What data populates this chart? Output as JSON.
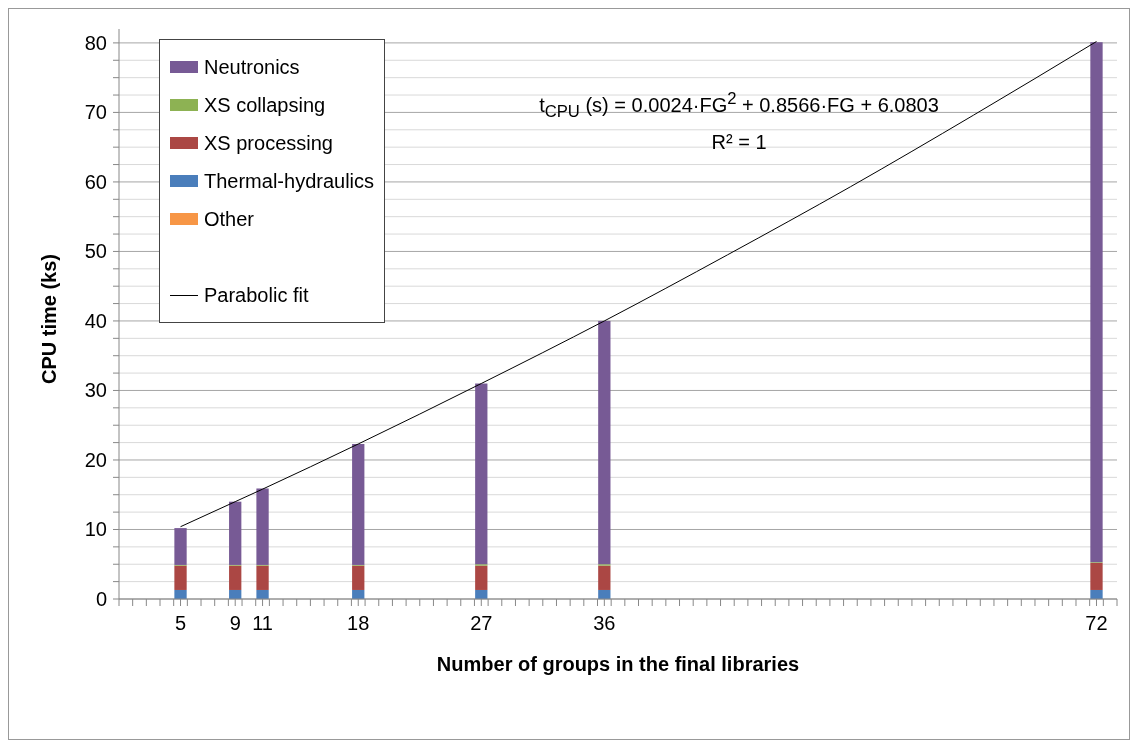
{
  "chart_data": {
    "type": "bar",
    "stacked": true,
    "xlabel": "Number of groups in the final libraries",
    "ylabel": "CPU time (ks)",
    "x": [
      5,
      9,
      11,
      18,
      27,
      36,
      72
    ],
    "xlim": [
      0.5,
      73.5
    ],
    "xticks": [
      5,
      9,
      11,
      18,
      27,
      36,
      72,
      {
        "value": 0.5,
        "label": null
      },
      {
        "value": 1.5,
        "label": null
      },
      {
        "value": 2.5,
        "label": null
      },
      {
        "value": 3.5,
        "label": null
      },
      {
        "value": 4.5,
        "label": null
      },
      {
        "value": 5.5,
        "label": null
      },
      {
        "value": 6.5,
        "label": null
      },
      {
        "value": 7.5,
        "label": null
      },
      {
        "value": 8.5,
        "label": null
      },
      {
        "value": 9.5,
        "label": null
      },
      {
        "value": 10.5,
        "label": null
      },
      {
        "value": 11.5,
        "label": null
      },
      {
        "value": 12.5,
        "label": null
      },
      {
        "value": 13.5,
        "label": null
      },
      {
        "value": 14.5,
        "label": null
      },
      {
        "value": 15.5,
        "label": null
      },
      {
        "value": 16.5,
        "label": null
      },
      {
        "value": 17.5,
        "label": null
      },
      {
        "value": 18.5,
        "label": null
      },
      {
        "value": 19.5,
        "label": null
      },
      {
        "value": 20.5,
        "label": null
      },
      {
        "value": 21.5,
        "label": null
      },
      {
        "value": 22.5,
        "label": null
      },
      {
        "value": 23.5,
        "label": null
      },
      {
        "value": 24.5,
        "label": null
      },
      {
        "value": 25.5,
        "label": null
      },
      {
        "value": 26.5,
        "label": null
      },
      {
        "value": 27.5,
        "label": null
      },
      {
        "value": 28.5,
        "label": null
      },
      {
        "value": 29.5,
        "label": null
      },
      {
        "value": 30.5,
        "label": null
      },
      {
        "value": 31.5,
        "label": null
      },
      {
        "value": 32.5,
        "label": null
      },
      {
        "value": 33.5,
        "label": null
      },
      {
        "value": 34.5,
        "label": null
      },
      {
        "value": 35.5,
        "label": null
      },
      {
        "value": 36.5,
        "label": null
      },
      {
        "value": 37.5,
        "label": null
      },
      {
        "value": 38.5,
        "label": null
      },
      {
        "value": 39.5,
        "label": null
      },
      {
        "value": 40.5,
        "label": null
      },
      {
        "value": 41.5,
        "label": null
      },
      {
        "value": 42.5,
        "label": null
      },
      {
        "value": 43.5,
        "label": null
      },
      {
        "value": 44.5,
        "label": null
      },
      {
        "value": 45.5,
        "label": null
      },
      {
        "value": 46.5,
        "label": null
      },
      {
        "value": 47.5,
        "label": null
      },
      {
        "value": 48.5,
        "label": null
      },
      {
        "value": 49.5,
        "label": null
      },
      {
        "value": 50.5,
        "label": null
      },
      {
        "value": 51.5,
        "label": null
      },
      {
        "value": 52.5,
        "label": null
      },
      {
        "value": 53.5,
        "label": null
      },
      {
        "value": 54.5,
        "label": null
      },
      {
        "value": 55.5,
        "label": null
      },
      {
        "value": 56.5,
        "label": null
      },
      {
        "value": 57.5,
        "label": null
      },
      {
        "value": 58.5,
        "label": null
      },
      {
        "value": 59.5,
        "label": null
      },
      {
        "value": 60.5,
        "label": null
      },
      {
        "value": 61.5,
        "label": null
      },
      {
        "value": 62.5,
        "label": null
      },
      {
        "value": 63.5,
        "label": null
      },
      {
        "value": 64.5,
        "label": null
      },
      {
        "value": 65.5,
        "label": null
      },
      {
        "value": 66.5,
        "label": null
      },
      {
        "value": 67.5,
        "label": null
      },
      {
        "value": 68.5,
        "label": null
      },
      {
        "value": 69.5,
        "label": null
      },
      {
        "value": 70.5,
        "label": null
      },
      {
        "value": 71.5,
        "label": null
      },
      {
        "value": 72.5,
        "label": null
      },
      {
        "value": 73.5,
        "label": null
      }
    ],
    "ylim": [
      0,
      82
    ],
    "yticks": [
      0,
      10,
      20,
      30,
      40,
      50,
      60,
      70,
      80,
      {
        "value": 2.5,
        "label": null
      },
      {
        "value": 5,
        "label": null
      },
      {
        "value": 7.5,
        "label": null
      },
      {
        "value": 12.5,
        "label": null
      },
      {
        "value": 15,
        "label": null
      },
      {
        "value": 17.5,
        "label": null
      },
      {
        "value": 22.5,
        "label": null
      },
      {
        "value": 25,
        "label": null
      },
      {
        "value": 27.5,
        "label": null
      },
      {
        "value": 32.5,
        "label": null
      },
      {
        "value": 35,
        "label": null
      },
      {
        "value": 37.5,
        "label": null
      },
      {
        "value": 42.5,
        "label": null
      },
      {
        "value": 45,
        "label": null
      },
      {
        "value": 47.5,
        "label": null
      },
      {
        "value": 52.5,
        "label": null
      },
      {
        "value": 55,
        "label": null
      },
      {
        "value": 57.5,
        "label": null
      },
      {
        "value": 62.5,
        "label": null
      },
      {
        "value": 65,
        "label": null
      },
      {
        "value": 67.5,
        "label": null
      },
      {
        "value": 72.5,
        "label": null
      },
      {
        "value": 75,
        "label": null
      },
      {
        "value": 77.5,
        "label": null
      }
    ],
    "grid": "y",
    "legend": "top left",
    "marker": "none",
    "series": [
      {
        "name": "Other",
        "color": "#f79646",
        "values": [
          0,
          0,
          0,
          0,
          0,
          0,
          0
        ]
      },
      {
        "name": "Thermal-hydraulics",
        "color": "#4a7ebb",
        "values": [
          1.3,
          1.3,
          1.3,
          1.3,
          1.3,
          1.3,
          1.3
        ]
      },
      {
        "name": "XS processing",
        "color": "#ab4744",
        "values": [
          3.5,
          3.5,
          3.5,
          3.5,
          3.5,
          3.5,
          3.9
        ]
      },
      {
        "name": "XS collapsing",
        "color": "#8db253",
        "values": [
          0.1,
          0.1,
          0.1,
          0.1,
          0.2,
          0.2,
          0.1
        ]
      },
      {
        "name": "Neutronics",
        "color": "#775a95",
        "values": [
          5.3,
          9.1,
          11.0,
          17.4,
          26.0,
          35.0,
          74.8
        ]
      },
      {
        "name": "Parabolic fit",
        "type": "line",
        "color": "#000000",
        "line_style": "solid",
        "x": [
          5,
          9,
          11,
          18,
          27,
          36,
          45,
          54,
          63,
          72
        ],
        "values": [
          10.4,
          14.0,
          15.8,
          22.3,
          31.0,
          40.0,
          49.5,
          59.3,
          69.6,
          80.2
        ]
      }
    ],
    "annotations": [
      "t$_{CPU}$ (s) = 0.0024·FG$^{2}$ + 0.8566·FG + 6.0803",
      "R² = 1"
    ]
  }
}
